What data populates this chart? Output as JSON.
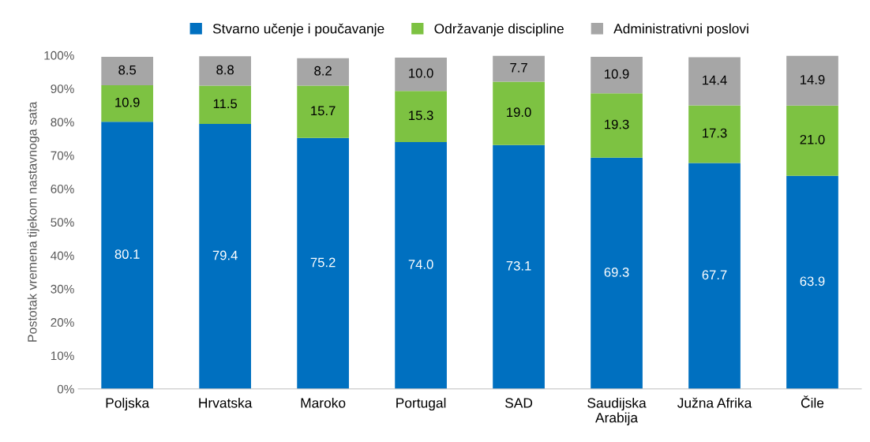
{
  "chart_data": {
    "type": "bar",
    "stacked": true,
    "ylabel": "Postotak vremena tijekom nastavnoga sata",
    "categories": [
      "Poljska",
      "Hrvatska",
      "Maroko",
      "Portugal",
      "SAD",
      "Saudijska\nArabija",
      "Južna Afrika",
      "Čile"
    ],
    "series": [
      {
        "name": "Stvarno učenje i poučavanje",
        "color": "#0070c0",
        "values": [
          80.1,
          79.4,
          75.2,
          74.0,
          73.1,
          69.3,
          67.7,
          63.9
        ],
        "value_labels": [
          "80.1",
          "79.4",
          "75.2",
          "74.0",
          "73.1",
          "69.3",
          "67.7",
          "63.9"
        ]
      },
      {
        "name": "Održavanje discipline",
        "color": "#7dc242",
        "values": [
          10.9,
          11.5,
          15.7,
          15.3,
          19.0,
          19.3,
          17.3,
          21.0
        ],
        "value_labels": [
          "10.9",
          "11.5",
          "15.7",
          "15.3",
          "19.0",
          "19.3",
          "17.3",
          "21.0"
        ]
      },
      {
        "name": "Administrativni poslovi",
        "color": "#a6a6a6",
        "values": [
          8.5,
          8.8,
          8.2,
          10.0,
          7.7,
          10.9,
          14.4,
          14.9
        ],
        "value_labels": [
          "8.5",
          "8.8",
          "8.2",
          "10.0",
          "7.7",
          "10.9",
          "14.4",
          "14.9"
        ]
      }
    ],
    "ylim": [
      0,
      100
    ],
    "yticks": [
      {
        "value": 0,
        "label": "0%"
      },
      {
        "value": 10,
        "label": "10%"
      },
      {
        "value": 20,
        "label": "20%"
      },
      {
        "value": 30,
        "label": "30%"
      },
      {
        "value": 40,
        "label": "40%"
      },
      {
        "value": 50,
        "label": "50%"
      },
      {
        "value": 60,
        "label": "60%"
      },
      {
        "value": 70,
        "label": "70%"
      },
      {
        "value": 80,
        "label": "80%"
      },
      {
        "value": 90,
        "label": "90%"
      },
      {
        "value": 100,
        "label": "100%"
      }
    ],
    "grid": false,
    "legend": "top"
  }
}
